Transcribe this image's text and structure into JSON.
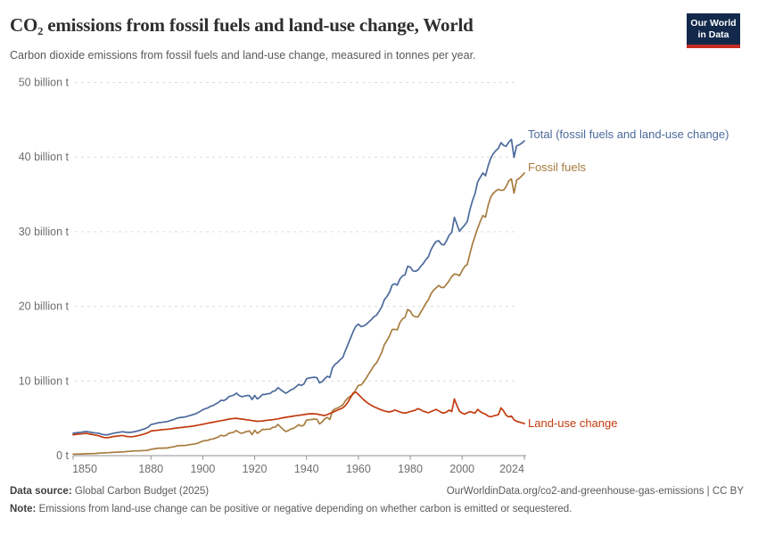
{
  "header": {
    "title": "CO₂ emissions from fossil fuels and land-use change, World",
    "subtitle": "Carbon dioxide emissions from fossil fuels and land-use change, measured in tonnes per year.",
    "logo": {
      "line1": "Our World",
      "line2": "in Data",
      "bg_color": "#12294B",
      "accent_color": "#C62A22"
    }
  },
  "footer": {
    "datasource_label": "Data source:",
    "datasource_value": " Global Carbon Budget (2025)",
    "link": "OurWorldinData.org/co2-and-greenhouse-gas-emissions | CC BY",
    "note_label": "Note:",
    "note_value": " Emissions from land-use change can be positive or negative depending on whether carbon is emitted or sequestered."
  },
  "chart_data": {
    "type": "line",
    "title": "CO₂ emissions from fossil fuels and land-use change, World",
    "unit": "billion tonnes CO₂ per year",
    "xlim": [
      1850,
      2024
    ],
    "ylim": [
      0,
      50
    ],
    "grid": "horizontal-dashed",
    "legend": "end-of-line-labels",
    "xticks": [
      1850,
      1880,
      1900,
      1920,
      1940,
      1960,
      1980,
      2000,
      2024
    ],
    "xtick_label_offsets": {
      "1850": 13,
      "2024": -14
    },
    "yticks": [
      {
        "value": 0,
        "label": "0 t"
      },
      {
        "value": 10,
        "label": "10 billion t"
      },
      {
        "value": 20,
        "label": "20 billion t"
      },
      {
        "value": 30,
        "label": "30 billion t"
      },
      {
        "value": 40,
        "label": "40 billion t"
      },
      {
        "value": 50,
        "label": "50 billion t"
      }
    ],
    "years": [
      1850,
      1851,
      1852,
      1853,
      1854,
      1855,
      1856,
      1857,
      1858,
      1859,
      1860,
      1861,
      1862,
      1863,
      1864,
      1865,
      1866,
      1867,
      1868,
      1869,
      1870,
      1871,
      1872,
      1873,
      1874,
      1875,
      1876,
      1877,
      1878,
      1879,
      1880,
      1881,
      1882,
      1883,
      1884,
      1885,
      1886,
      1887,
      1888,
      1889,
      1890,
      1891,
      1892,
      1893,
      1894,
      1895,
      1896,
      1897,
      1898,
      1899,
      1900,
      1901,
      1902,
      1903,
      1904,
      1905,
      1906,
      1907,
      1908,
      1909,
      1910,
      1911,
      1912,
      1913,
      1914,
      1915,
      1916,
      1917,
      1918,
      1919,
      1920,
      1921,
      1922,
      1923,
      1924,
      1925,
      1926,
      1927,
      1928,
      1929,
      1930,
      1931,
      1932,
      1933,
      1934,
      1935,
      1936,
      1937,
      1938,
      1939,
      1940,
      1941,
      1942,
      1943,
      1944,
      1945,
      1946,
      1947,
      1948,
      1949,
      1950,
      1951,
      1952,
      1953,
      1954,
      1955,
      1956,
      1957,
      1958,
      1959,
      1960,
      1961,
      1962,
      1963,
      1964,
      1965,
      1966,
      1967,
      1968,
      1969,
      1970,
      1971,
      1972,
      1973,
      1974,
      1975,
      1976,
      1977,
      1978,
      1979,
      1980,
      1981,
      1982,
      1983,
      1984,
      1985,
      1986,
      1987,
      1988,
      1989,
      1990,
      1991,
      1992,
      1993,
      1994,
      1995,
      1996,
      1997,
      1998,
      1999,
      2000,
      2001,
      2002,
      2003,
      2004,
      2005,
      2006,
      2007,
      2008,
      2009,
      2010,
      2011,
      2012,
      2013,
      2014,
      2015,
      2016,
      2017,
      2018,
      2019,
      2020,
      2021,
      2022,
      2023,
      2024
    ],
    "series": [
      {
        "id": "total",
        "name": "Total (fossil fuels and land-use change)",
        "color": "#4C6A9C",
        "label_dy": -7,
        "values": [
          3.0,
          3.05,
          3.09,
          3.13,
          3.19,
          3.25,
          3.18,
          3.12,
          3.06,
          3.02,
          2.99,
          2.88,
          2.79,
          2.79,
          2.86,
          2.95,
          3.03,
          3.08,
          3.14,
          3.2,
          3.15,
          3.12,
          3.12,
          3.17,
          3.23,
          3.32,
          3.42,
          3.54,
          3.65,
          3.83,
          4.16,
          4.24,
          4.33,
          4.42,
          4.46,
          4.51,
          4.55,
          4.64,
          4.76,
          4.85,
          5.0,
          5.09,
          5.14,
          5.17,
          5.27,
          5.38,
          5.47,
          5.58,
          5.73,
          5.94,
          6.15,
          6.3,
          6.4,
          6.62,
          6.71,
          6.93,
          7.12,
          7.42,
          7.37,
          7.54,
          7.9,
          8.01,
          8.13,
          8.37,
          8.06,
          7.9,
          7.97,
          8.05,
          8.05,
          7.52,
          8.06,
          7.6,
          7.84,
          8.18,
          8.2,
          8.29,
          8.33,
          8.62,
          8.7,
          9.1,
          8.85,
          8.58,
          8.36,
          8.57,
          8.82,
          8.96,
          9.25,
          9.54,
          9.41,
          9.6,
          10.31,
          10.4,
          10.46,
          10.5,
          10.44,
          9.75,
          9.92,
          10.3,
          10.62,
          10.49,
          11.77,
          12.22,
          12.48,
          12.85,
          13.17,
          14.06,
          14.93,
          15.79,
          16.63,
          17.33,
          17.62,
          17.3,
          17.36,
          17.57,
          17.91,
          18.22,
          18.61,
          18.82,
          19.33,
          19.95,
          20.88,
          21.33,
          21.9,
          22.84,
          23.03,
          22.86,
          23.66,
          24.07,
          24.24,
          25.37,
          25.28,
          24.76,
          24.71,
          24.88,
          25.35,
          25.74,
          26.26,
          26.64,
          27.59,
          28.22,
          28.7,
          28.79,
          28.33,
          28.23,
          28.82,
          29.55,
          29.9,
          31.93,
          30.99,
          30.06,
          30.5,
          30.9,
          31.36,
          32.94,
          34.16,
          35.12,
          36.68,
          37.3,
          37.87,
          37.5,
          38.79,
          39.82,
          40.44,
          40.87,
          41.18,
          41.94,
          41.58,
          41.45,
          42.02,
          42.38,
          39.97,
          41.5,
          41.65,
          41.88,
          42.18
        ]
      },
      {
        "id": "fossil-fuels",
        "name": "Fossil fuels",
        "color": "#A87C3F",
        "label_dy": -6,
        "values": [
          0.2,
          0.2,
          0.21,
          0.23,
          0.24,
          0.25,
          0.26,
          0.27,
          0.28,
          0.3,
          0.34,
          0.36,
          0.37,
          0.39,
          0.41,
          0.43,
          0.45,
          0.46,
          0.48,
          0.5,
          0.53,
          0.56,
          0.59,
          0.62,
          0.63,
          0.64,
          0.66,
          0.68,
          0.69,
          0.73,
          0.86,
          0.9,
          0.95,
          1.0,
          1.0,
          1.01,
          1.02,
          1.08,
          1.16,
          1.2,
          1.3,
          1.35,
          1.36,
          1.35,
          1.41,
          1.48,
          1.52,
          1.58,
          1.66,
          1.8,
          1.95,
          2.02,
          2.05,
          2.2,
          2.23,
          2.38,
          2.5,
          2.74,
          2.63,
          2.72,
          3.0,
          3.06,
          3.15,
          3.37,
          3.11,
          3.0,
          3.12,
          3.25,
          3.3,
          2.82,
          3.41,
          3.0,
          3.22,
          3.53,
          3.5,
          3.55,
          3.55,
          3.8,
          3.82,
          4.18,
          3.85,
          3.5,
          3.22,
          3.37,
          3.57,
          3.66,
          3.9,
          4.14,
          3.96,
          4.1,
          4.76,
          4.8,
          4.84,
          4.9,
          4.86,
          4.25,
          4.5,
          4.92,
          5.12,
          4.84,
          5.97,
          6.27,
          6.38,
          6.6,
          6.77,
          7.36,
          7.73,
          7.99,
          8.23,
          8.83,
          9.42,
          9.45,
          9.86,
          10.37,
          10.96,
          11.47,
          12.06,
          12.42,
          13.08,
          13.85,
          14.88,
          15.43,
          16.05,
          16.89,
          16.93,
          16.86,
          17.81,
          18.32,
          18.54,
          19.57,
          19.38,
          18.76,
          18.61,
          18.58,
          19.2,
          19.79,
          20.41,
          20.89,
          21.69,
          22.17,
          22.5,
          22.79,
          22.53,
          22.53,
          22.97,
          23.45,
          24.0,
          24.33,
          24.29,
          24.11,
          24.8,
          25.35,
          25.61,
          27.04,
          28.36,
          29.42,
          30.48,
          31.4,
          32.17,
          31.95,
          33.49,
          34.62,
          35.14,
          35.47,
          35.68,
          35.54,
          35.58,
          36.05,
          36.82,
          37.08,
          35.17,
          36.9,
          37.15,
          37.48,
          37.88
        ]
      },
      {
        "id": "land-use-change",
        "name": "Land-use change",
        "color": "#C23B0E",
        "label_dy": 0,
        "values": [
          2.8,
          2.85,
          2.88,
          2.9,
          2.95,
          3.0,
          2.92,
          2.85,
          2.78,
          2.72,
          2.65,
          2.52,
          2.42,
          2.4,
          2.45,
          2.52,
          2.58,
          2.62,
          2.66,
          2.7,
          2.62,
          2.56,
          2.53,
          2.55,
          2.6,
          2.68,
          2.76,
          2.86,
          2.96,
          3.1,
          3.3,
          3.34,
          3.38,
          3.42,
          3.46,
          3.5,
          3.53,
          3.56,
          3.6,
          3.65,
          3.7,
          3.74,
          3.78,
          3.82,
          3.86,
          3.9,
          3.95,
          4.0,
          4.07,
          4.14,
          4.2,
          4.28,
          4.35,
          4.42,
          4.48,
          4.55,
          4.62,
          4.68,
          4.74,
          4.82,
          4.9,
          4.95,
          4.98,
          5.0,
          4.95,
          4.9,
          4.85,
          4.8,
          4.75,
          4.7,
          4.65,
          4.6,
          4.62,
          4.65,
          4.7,
          4.74,
          4.78,
          4.82,
          4.88,
          4.92,
          5.0,
          5.08,
          5.14,
          5.2,
          5.25,
          5.3,
          5.35,
          5.4,
          5.45,
          5.5,
          5.55,
          5.6,
          5.62,
          5.6,
          5.58,
          5.5,
          5.42,
          5.38,
          5.5,
          5.65,
          5.8,
          5.95,
          6.1,
          6.25,
          6.4,
          6.7,
          7.2,
          7.8,
          8.4,
          8.5,
          8.2,
          7.85,
          7.5,
          7.2,
          6.95,
          6.75,
          6.55,
          6.4,
          6.25,
          6.1,
          6.0,
          5.9,
          5.85,
          5.95,
          6.1,
          6.0,
          5.85,
          5.75,
          5.7,
          5.8,
          5.9,
          6.0,
          6.1,
          6.3,
          6.15,
          5.95,
          5.85,
          5.75,
          5.9,
          6.05,
          6.2,
          6.0,
          5.8,
          5.7,
          5.85,
          6.1,
          5.9,
          7.6,
          6.7,
          5.95,
          5.7,
          5.55,
          5.75,
          5.9,
          5.8,
          5.7,
          6.2,
          5.9,
          5.7,
          5.55,
          5.3,
          5.2,
          5.3,
          5.4,
          5.5,
          6.4,
          6.0,
          5.4,
          5.2,
          5.3,
          4.8,
          4.6,
          4.5,
          4.4,
          4.3
        ]
      }
    ]
  }
}
